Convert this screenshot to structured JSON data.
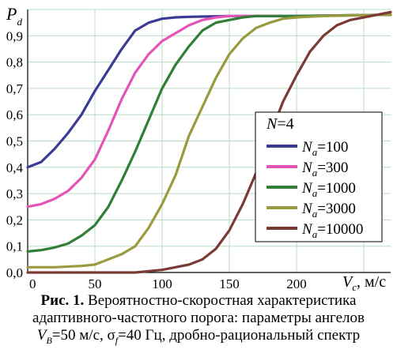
{
  "chart_data": {
    "type": "line",
    "ylabel": "P",
    "ylabel_sub": "d",
    "xlabel_main": "V",
    "xlabel_sub": "c",
    "xlabel_unit": ", м/с",
    "xlim": [
      0,
      270
    ],
    "ylim": [
      0,
      1.0
    ],
    "x_ticks": [
      "0",
      "50",
      "100",
      "150",
      "200"
    ],
    "y_ticks": [
      "0,0",
      "0,1",
      "0,2",
      "0,3",
      "0,4",
      "0,5",
      "0,6",
      "0,7",
      "0,8",
      "0,9"
    ],
    "grid": true,
    "legend": {
      "title_main": "N",
      "title_value": "=4",
      "label_prefix": "N",
      "label_sub": "a",
      "position": "right"
    },
    "series": [
      {
        "name": "=100",
        "color": "#3b3b93",
        "x": [
          0,
          10,
          20,
          30,
          40,
          50,
          60,
          70,
          80,
          90,
          100,
          110,
          120,
          150,
          200,
          270
        ],
        "y": [
          0.4,
          0.42,
          0.47,
          0.53,
          0.6,
          0.69,
          0.77,
          0.85,
          0.92,
          0.95,
          0.965,
          0.97,
          0.972,
          0.975,
          0.975,
          0.98
        ]
      },
      {
        "name": "=300",
        "color": "#e454b6",
        "x": [
          0,
          10,
          20,
          30,
          40,
          50,
          60,
          70,
          80,
          90,
          100,
          110,
          120,
          130,
          140,
          150,
          200,
          270
        ],
        "y": [
          0.25,
          0.26,
          0.28,
          0.31,
          0.36,
          0.43,
          0.54,
          0.66,
          0.76,
          0.83,
          0.88,
          0.91,
          0.94,
          0.96,
          0.97,
          0.975,
          0.975,
          0.98
        ]
      },
      {
        "name": "=1000",
        "color": "#2f7f36",
        "x": [
          0,
          10,
          20,
          30,
          40,
          50,
          60,
          70,
          80,
          90,
          100,
          110,
          120,
          130,
          140,
          150,
          160,
          170,
          200,
          270
        ],
        "y": [
          0.08,
          0.085,
          0.095,
          0.11,
          0.14,
          0.18,
          0.25,
          0.35,
          0.46,
          0.58,
          0.7,
          0.79,
          0.86,
          0.92,
          0.95,
          0.96,
          0.97,
          0.975,
          0.975,
          0.98
        ]
      },
      {
        "name": "=3000",
        "color": "#9a9a40",
        "x": [
          0,
          20,
          40,
          50,
          60,
          70,
          80,
          90,
          100,
          110,
          120,
          130,
          140,
          150,
          160,
          170,
          180,
          190,
          200,
          220,
          270
        ],
        "y": [
          0.02,
          0.02,
          0.025,
          0.03,
          0.05,
          0.07,
          0.1,
          0.17,
          0.26,
          0.37,
          0.52,
          0.63,
          0.74,
          0.83,
          0.89,
          0.93,
          0.95,
          0.965,
          0.97,
          0.975,
          0.98
        ]
      },
      {
        "name": "=10000",
        "color": "#7a3a36",
        "x": [
          0,
          60,
          80,
          90,
          100,
          110,
          120,
          130,
          140,
          150,
          160,
          170,
          180,
          190,
          200,
          210,
          220,
          230,
          240,
          250,
          260,
          270
        ],
        "y": [
          0.0,
          0.0,
          0.0,
          0.005,
          0.01,
          0.02,
          0.03,
          0.05,
          0.09,
          0.16,
          0.26,
          0.38,
          0.52,
          0.65,
          0.75,
          0.84,
          0.9,
          0.94,
          0.96,
          0.97,
          0.98,
          0.99
        ]
      }
    ]
  },
  "caption": {
    "line1_bold": "Рис. 1.",
    "line1_text": " Вероятностно-скоростная характеристика",
    "line2": "адаптивного-частотного порога: параметры ангелов",
    "line3_v": "V",
    "line3_vsub": "B",
    "line3_a": "=50 м/с, σ",
    "line3_fsub": "f",
    "line3_b": "=40 Гц, дробно-рациональный спектр"
  }
}
